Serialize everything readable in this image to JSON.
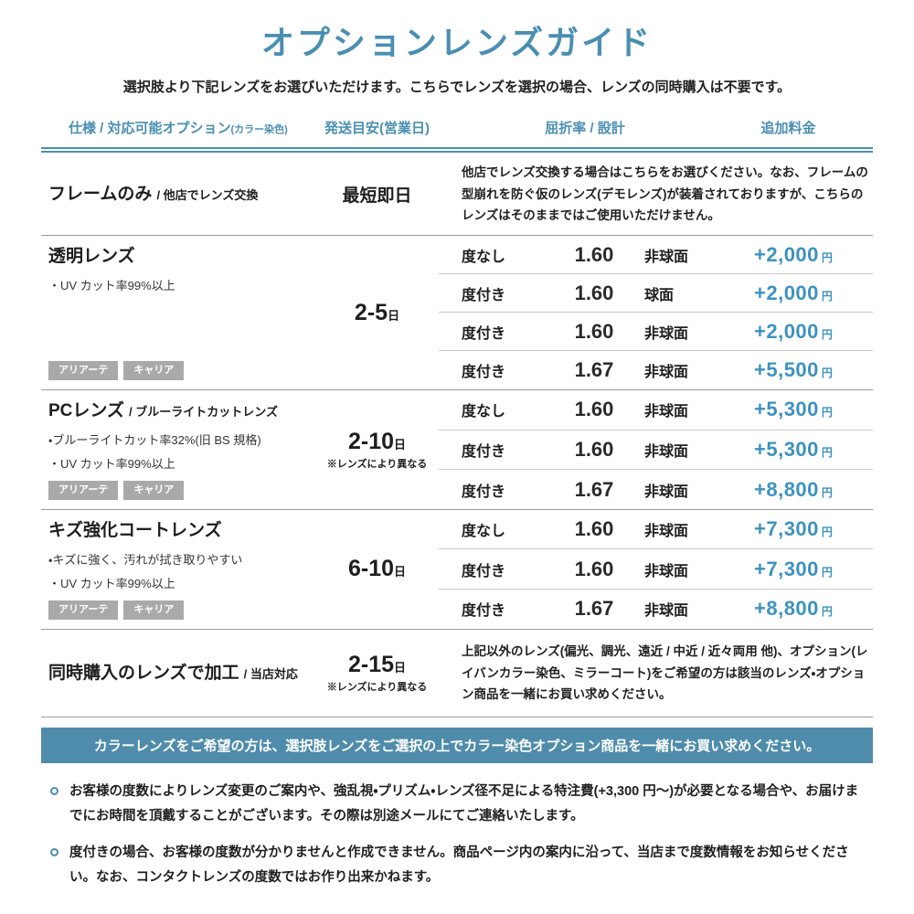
{
  "page": {
    "title": "オプションレンズガイド",
    "subtitle": "選択肢より下記レンズをお選びいただけます。こちらでレンズを選択の場合、レンズの同時購入は不要です。"
  },
  "colors": {
    "accent_blue": "#4a8fb2",
    "price_blue": "#3d92c0",
    "banner_background": "#4f8cab",
    "tag_gray": "#a9a9a9"
  },
  "table": {
    "headers": {
      "spec": "仕様 / 対応可能オプション",
      "spec_note": "(カラー染色)",
      "shipping": "発送目安(営業日)",
      "refraction": "屈折率 / 設計",
      "price": "追加料金"
    },
    "rows": [
      {
        "title": "フレームのみ",
        "title_sub": "/ 他店でレンズ交換",
        "shipping": "最短即日",
        "description": "他店でレンズ交換する場合はこちらをお選びください。なお、フレームの型崩れを防ぐ仮のレンズ(デモレンズ)が装着されておりますが、こちらのレンズはそのままではご使用いただけません。"
      },
      {
        "title": "透明レンズ",
        "title_sub": "",
        "features": [
          "・UV カット率99%以上"
        ],
        "tags": [
          "アリアーテ",
          "キャリア"
        ],
        "shipping": "2-5",
        "shipping_unit": "日",
        "shipping_note": "",
        "options": [
          {
            "power": "度なし",
            "index": "1.60",
            "design": "非球面",
            "price": "+2,000",
            "unit": "円"
          },
          {
            "power": "度付き",
            "index": "1.60",
            "design": "球面",
            "price": "+2,000",
            "unit": "円"
          },
          {
            "power": "度付き",
            "index": "1.60",
            "design": "非球面",
            "price": "+2,000",
            "unit": "円"
          },
          {
            "power": "度付き",
            "index": "1.67",
            "design": "非球面",
            "price": "+5,500",
            "unit": "円"
          }
        ]
      },
      {
        "title": "PCレンズ",
        "title_sub": "/ ブルーライトカットレンズ",
        "features": [
          "・ブルーライトカット率32%(旧 BS 規格)",
          "・UV カット率99%以上"
        ],
        "tags": [
          "アリアーテ",
          "キャリア"
        ],
        "shipping": "2-10",
        "shipping_unit": "日",
        "shipping_note": "※レンズにより異なる",
        "options": [
          {
            "power": "度なし",
            "index": "1.60",
            "design": "非球面",
            "price": "+5,300",
            "unit": "円"
          },
          {
            "power": "度付き",
            "index": "1.60",
            "design": "非球面",
            "price": "+5,300",
            "unit": "円"
          },
          {
            "power": "度付き",
            "index": "1.67",
            "design": "非球面",
            "price": "+8,800",
            "unit": "円"
          }
        ]
      },
      {
        "title": "キズ強化コートレンズ",
        "title_sub": "",
        "features": [
          "・キズに強く、汚れが拭き取りやすい",
          "・UV カット率99%以上"
        ],
        "tags": [
          "アリアーテ",
          "キャリア"
        ],
        "shipping": "6-10",
        "shipping_unit": "日",
        "shipping_note": "",
        "options": [
          {
            "power": "度なし",
            "index": "1.60",
            "design": "非球面",
            "price": "+7,300",
            "unit": "円"
          },
          {
            "power": "度付き",
            "index": "1.60",
            "design": "非球面",
            "price": "+7,300",
            "unit": "円"
          },
          {
            "power": "度付き",
            "index": "1.67",
            "design": "非球面",
            "price": "+8,800",
            "unit": "円"
          }
        ]
      },
      {
        "title": "同時購入のレンズで加工",
        "title_sub": "/ 当店対応",
        "shipping": "2-15",
        "shipping_unit": "日",
        "shipping_note": "※レンズにより異なる",
        "description": "上記以外のレンズ(偏光、調光、遠近 / 中近 / 近々両用 他)、オプション(レイバンカラー染色、ミラーコート)をご希望の方は該当のレンズ・オプション商品を一緒にお買い求めください。"
      }
    ]
  },
  "banner": {
    "text": "カラーレンズをご希望の方は、選択肢レンズをご選択の上でカラー染色オプション商品を一緒にお買い求めください。"
  },
  "notes": [
    "お客様の度数によりレンズ変更のご案内や、強乱視・プリズム・レンズ径不足による特注費(+3,300 円〜)が必要となる場合や、お届けまでにお時間を頂戴することがございます。その際は別途メールにてご連絡いたします。",
    "度付きの場合、お客様の度数が分かりませんと作成できません。商品ページ内の案内に沿って、当店まで度数情報をお知らせください。なお、コンタクトレンズの度数ではお作り出来かねます。"
  ]
}
